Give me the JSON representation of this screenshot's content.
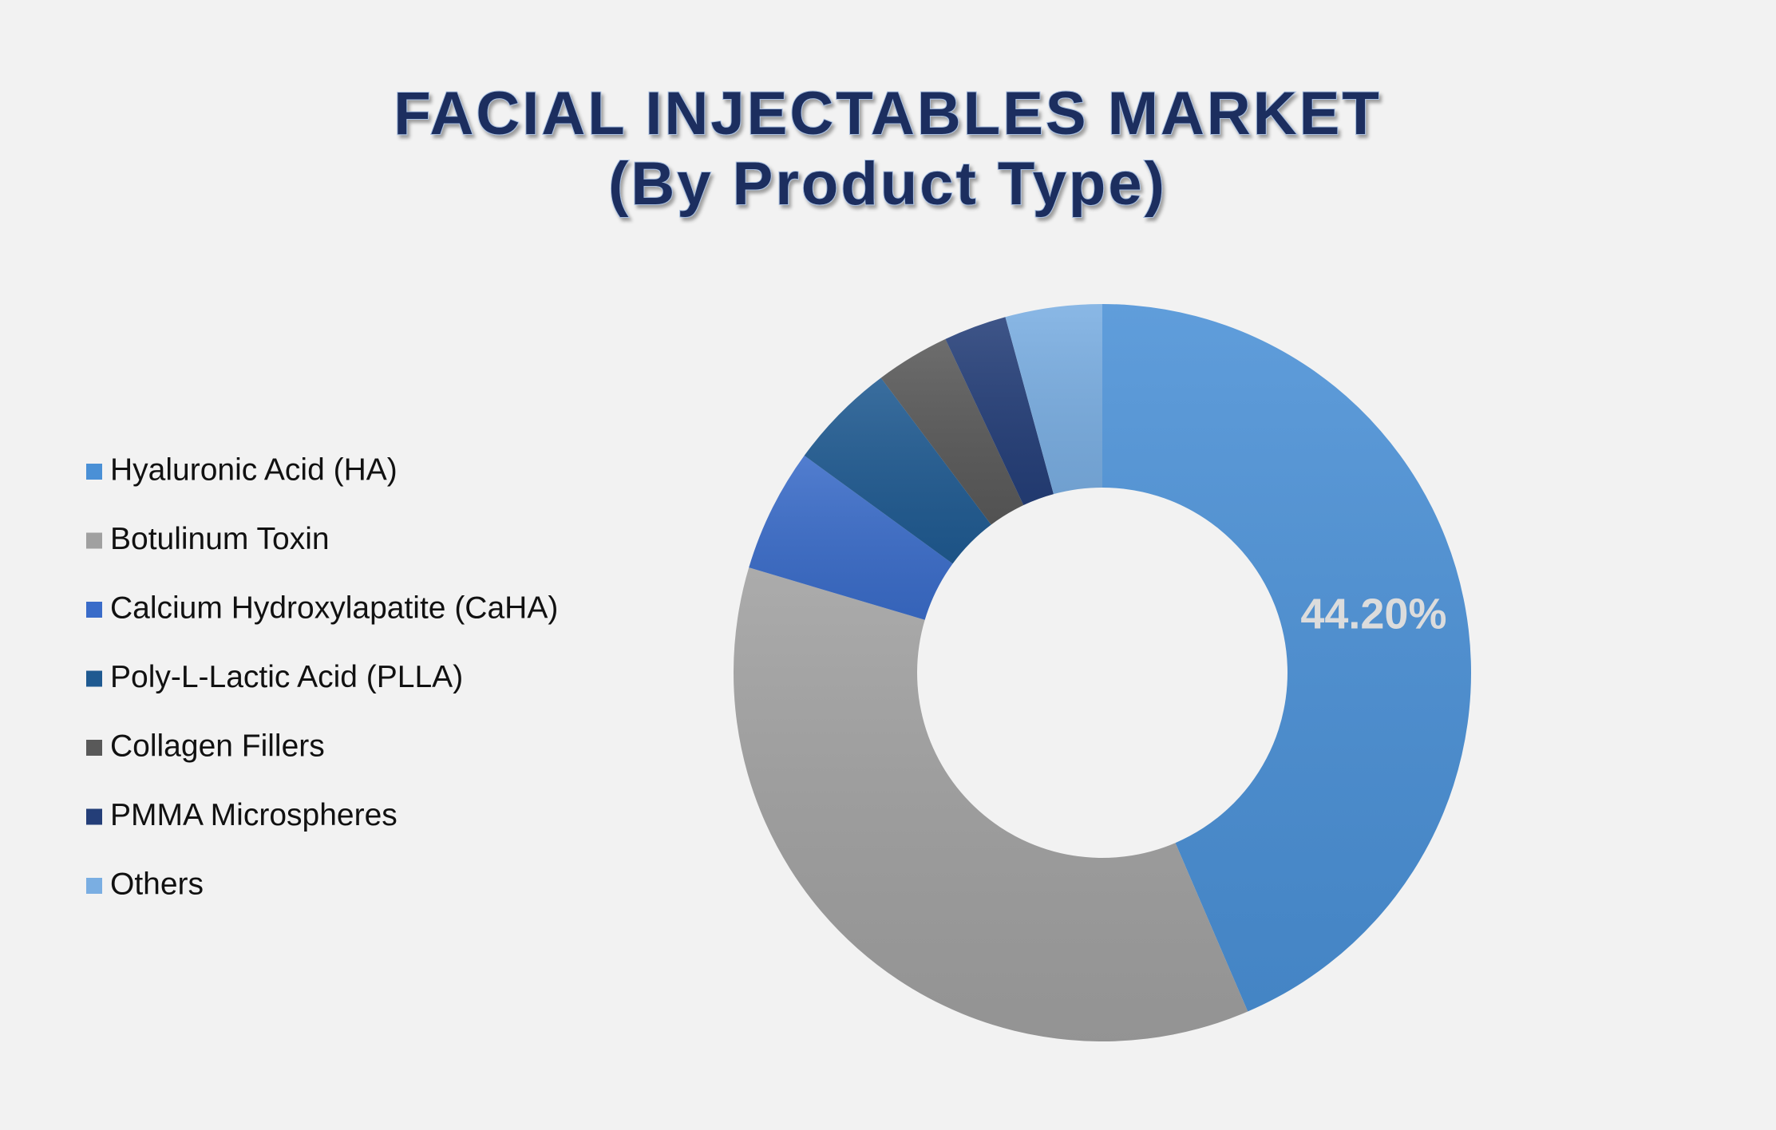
{
  "chart_data": {
    "type": "pie",
    "style": "donut",
    "title_lines": [
      "FACIAL INJECTABLES MARKET",
      "(By Product Type)"
    ],
    "categories": [
      "Hyaluronic Acid (HA)",
      "Botulinum Toxin",
      "Calcium Hydroxylapatite (CaHA)",
      "Poly-L-Lactic Acid (PLLA)",
      "Collagen Fillers",
      "PMMA Microspheres",
      "Others"
    ],
    "values": [
      44.2,
      36.6,
      5.5,
      4.8,
      3.3,
      2.8,
      4.3
    ],
    "colors": [
      "#4a90d6",
      "#a0a0a0",
      "#3a6cc9",
      "#1f5a91",
      "#595959",
      "#243e78",
      "#7aaee2"
    ],
    "data_labels": [
      {
        "category": "Hyaluronic Acid (HA)",
        "text": "44.20%"
      }
    ],
    "legend_position": "left",
    "data_label_color": "#dcdcdc",
    "title_color": "#1a2f5e"
  }
}
